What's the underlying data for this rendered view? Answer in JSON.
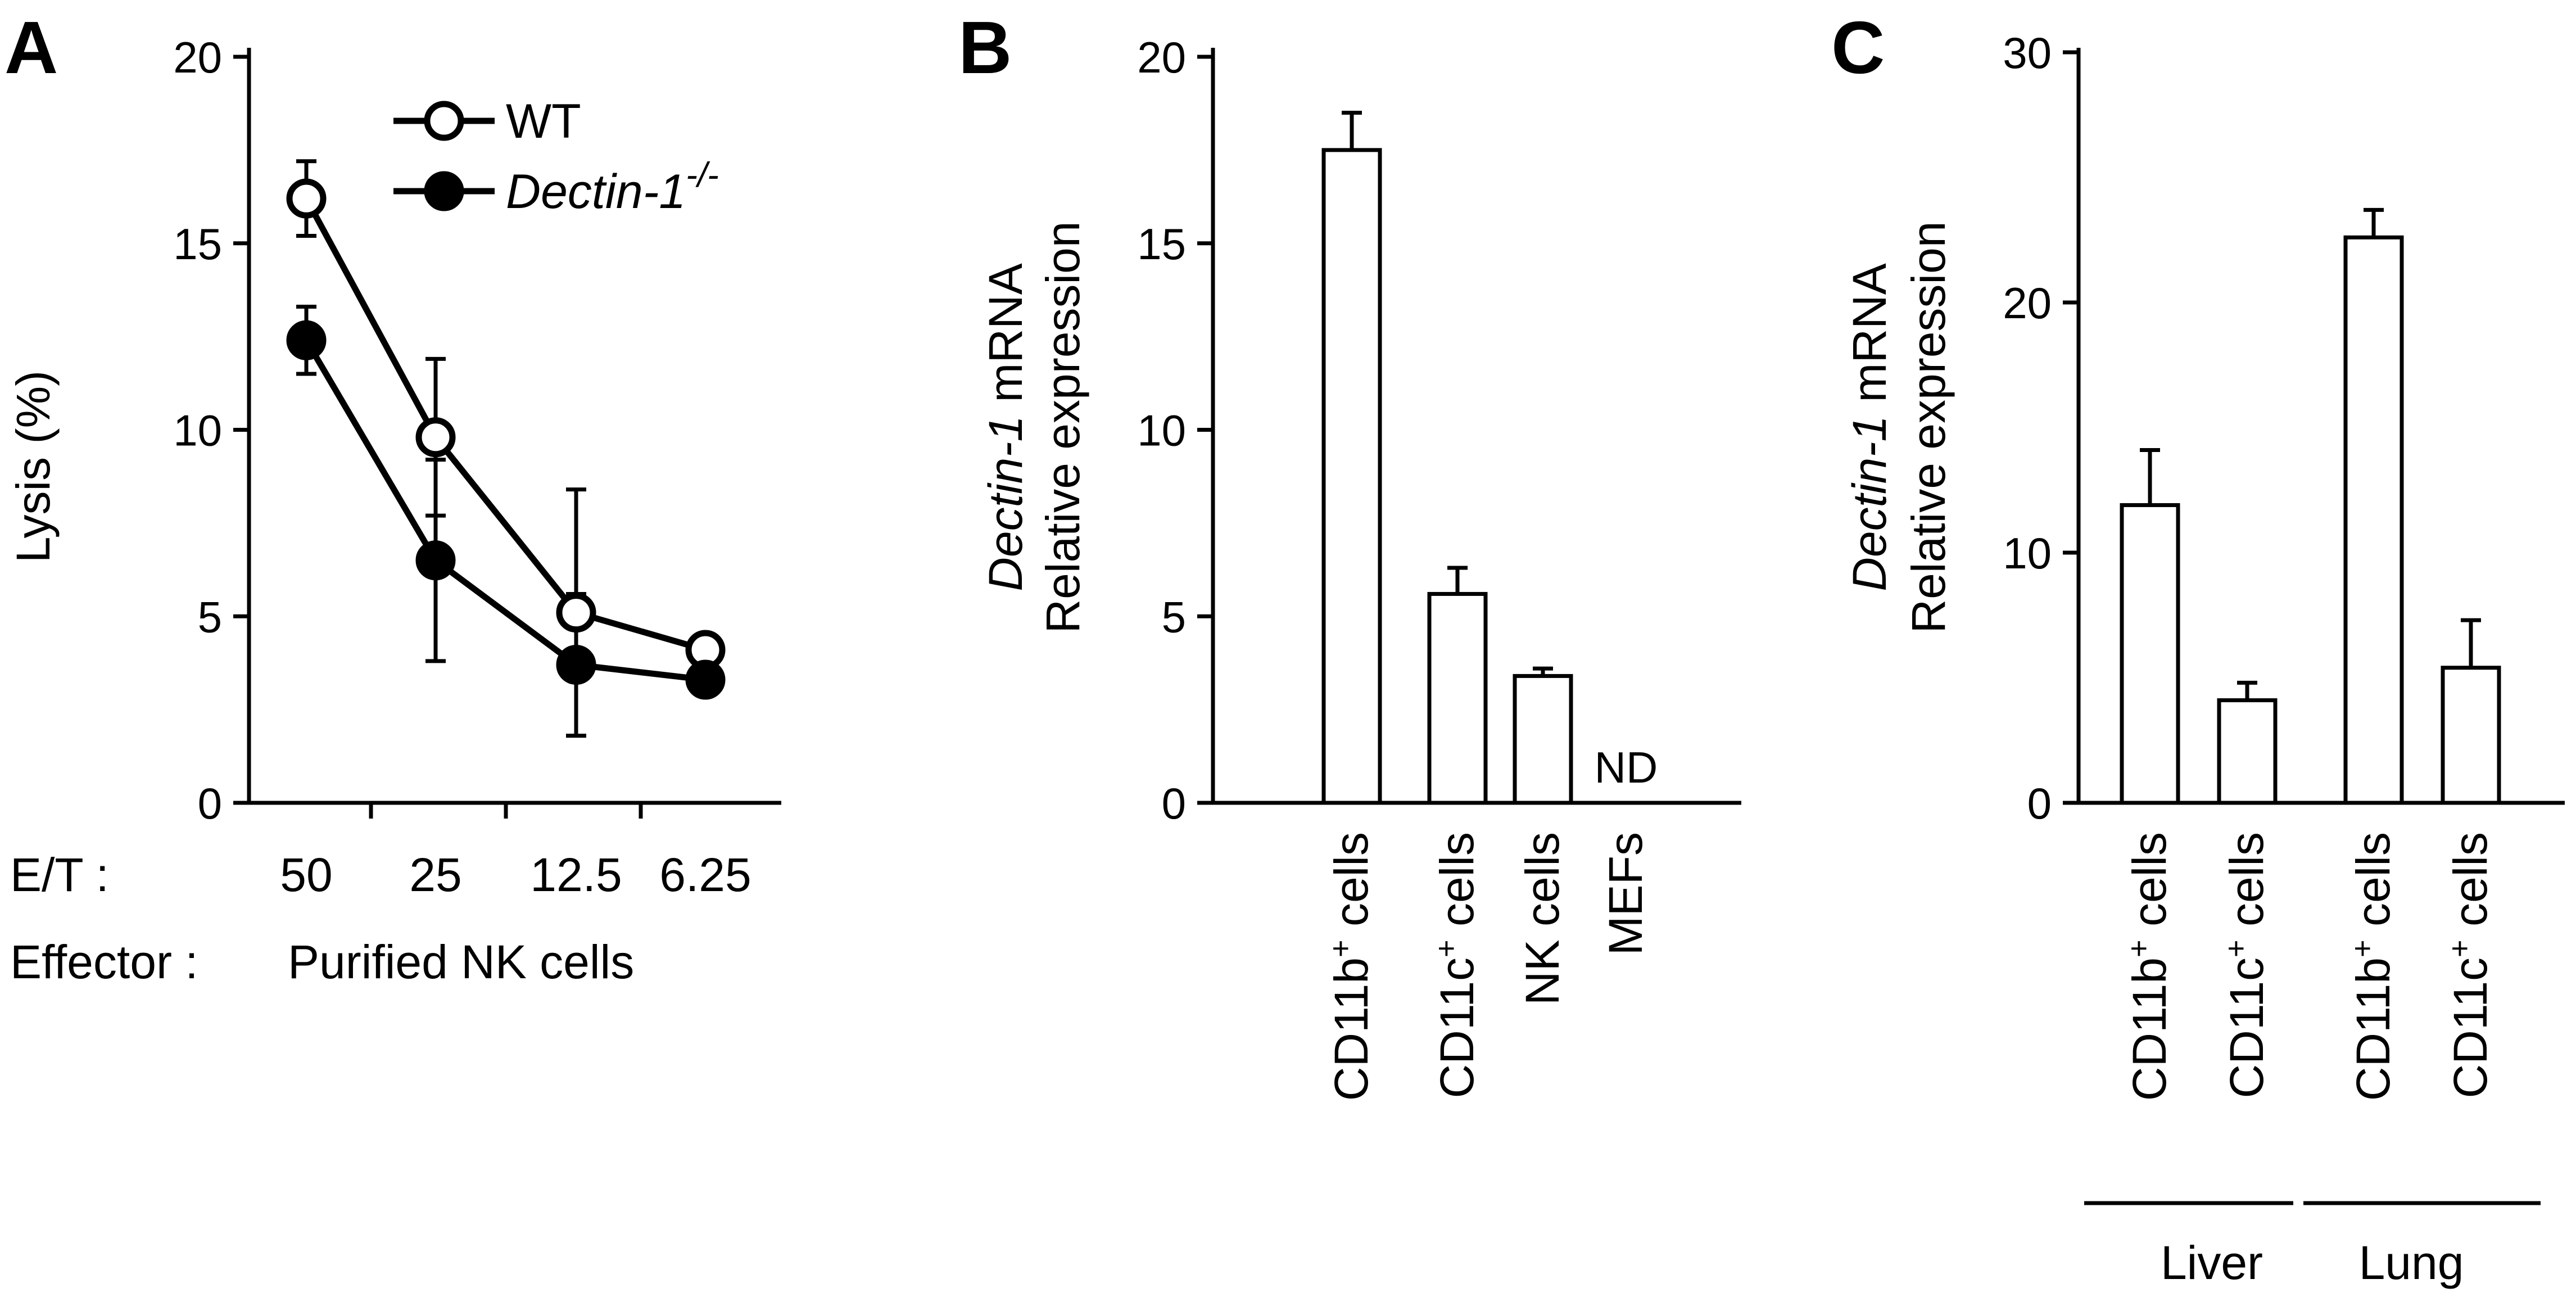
{
  "chart_data": [
    {
      "panel": "A",
      "type": "line",
      "ylabel": "Lysis (%)",
      "ylim": [
        0,
        20
      ],
      "yticks": [
        "0",
        "5",
        "10",
        "15",
        "20"
      ],
      "x_row_label": "E/T :",
      "categories": [
        "50",
        "25",
        "12.5",
        "6.25"
      ],
      "effector_label": "Effector :",
      "effector_value": "Purified NK cells",
      "series": [
        {
          "name": "WT",
          "marker": "open",
          "values": [
            16.2,
            9.8,
            5.1,
            4.1
          ],
          "errors": [
            1.0,
            2.1,
            3.3,
            0
          ]
        },
        {
          "name": "Dectin-1",
          "name_sup": "-/-",
          "marker": "filled",
          "values": [
            12.4,
            6.5,
            3.7,
            3.3
          ],
          "errors": [
            0.9,
            2.7,
            1.9,
            0
          ]
        }
      ]
    },
    {
      "panel": "B",
      "type": "bar",
      "ylabel_italic": "Dectin-1",
      "ylabel_rest": " mRNA",
      "ylabel_line2": "Relative expression",
      "ylim": [
        0,
        20
      ],
      "yticks": [
        "0",
        "5",
        "10",
        "15",
        "20"
      ],
      "categories": [
        {
          "pre": "CD11b",
          "sup": "+",
          "post": " cells"
        },
        {
          "pre": "CD11c",
          "sup": "+",
          "post": " cells"
        },
        {
          "pre": "NK cells",
          "sup": "",
          "post": ""
        },
        {
          "pre": "MEFs",
          "sup": "",
          "post": ""
        }
      ],
      "values": [
        17.5,
        5.6,
        3.4,
        null
      ],
      "errors": [
        1.0,
        0.7,
        0.2,
        null
      ],
      "annotation": "ND"
    },
    {
      "panel": "C",
      "type": "bar",
      "ylabel_italic": "Dectin-1",
      "ylabel_rest": " mRNA",
      "ylabel_line2": "Relative expression",
      "ylim": [
        0,
        30
      ],
      "yticks": [
        "0",
        "10",
        "20",
        "30"
      ],
      "categories": [
        {
          "pre": "CD11b",
          "sup": "+",
          "post": " cells"
        },
        {
          "pre": "CD11c",
          "sup": "+",
          "post": " cells"
        },
        {
          "pre": "CD11b",
          "sup": "+",
          "post": " cells"
        },
        {
          "pre": "CD11c",
          "sup": "+",
          "post": " cells"
        }
      ],
      "values": [
        11.9,
        4.1,
        22.6,
        5.4
      ],
      "errors": [
        2.2,
        0.7,
        1.1,
        1.9
      ],
      "groups": [
        "Liver",
        "Lung"
      ]
    }
  ]
}
